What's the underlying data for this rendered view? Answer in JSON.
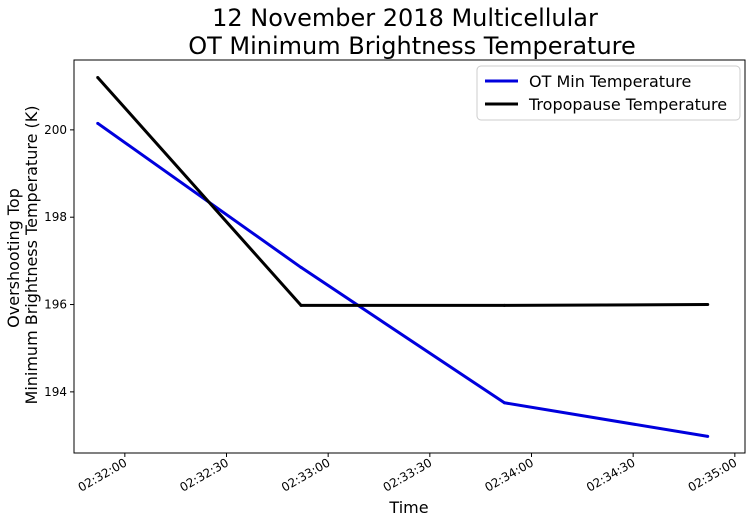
{
  "chart_data": {
    "type": "line",
    "title": [
      "12 November 2018 Multicellular",
      "OT Minimum Brightness Temperature"
    ],
    "xlabel": "Time",
    "ylabel": [
      "Overshooting Top",
      "Minimum Brightness Temperature (K)"
    ],
    "x": [
      "02:31:52",
      "02:32:52",
      "02:33:52",
      "02:34:52"
    ],
    "xlim": [
      "02:31:45",
      "02:35:03"
    ],
    "ylim": [
      192.6,
      201.6
    ],
    "x_ticks": [
      "02:32:00",
      "02:32:30",
      "02:33:00",
      "02:33:30",
      "02:34:00",
      "02:34:30",
      "02:35:00"
    ],
    "y_ticks": [
      194,
      196,
      198,
      200
    ],
    "grid": false,
    "legend_position": "top-right",
    "series": [
      {
        "name": "OT Min Temperature",
        "color": "#0000dd",
        "values": [
          200.15,
          196.85,
          193.75,
          192.98
        ]
      },
      {
        "name": "Tropopause Temperature",
        "color": "#000000",
        "values": [
          201.2,
          195.98,
          195.98,
          196.0
        ]
      }
    ]
  }
}
